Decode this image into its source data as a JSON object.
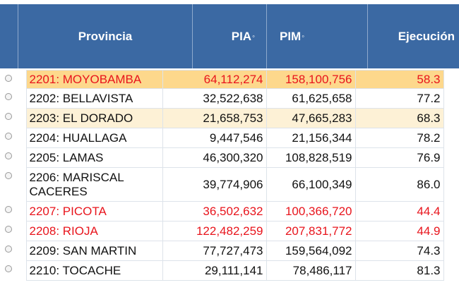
{
  "header": {
    "provincia": "Provincia",
    "pia": "PIA",
    "pim": "PIM",
    "ejecucion": "Ejecución",
    "sort_icon": "◦"
  },
  "colors": {
    "header_bg": "#3b69a3",
    "highlight": "#fdd88c",
    "alert_text": "#e8141c"
  },
  "rows": [
    {
      "provincia": "2201: MOYOBAMBA",
      "pia": "64,112,274",
      "pim": "158,100,756",
      "ejecucion": "58.3"
    },
    {
      "provincia": "2202: BELLAVISTA",
      "pia": "32,522,638",
      "pim": "61,625,658",
      "ejecucion": "77.2"
    },
    {
      "provincia": "2203: EL DORADO",
      "pia": "21,658,753",
      "pim": "47,665,283",
      "ejecucion": "68.3"
    },
    {
      "provincia": "2204: HUALLAGA",
      "pia": "9,447,546",
      "pim": "21,156,344",
      "ejecucion": "78.2"
    },
    {
      "provincia": "2205: LAMAS",
      "pia": "46,300,320",
      "pim": "108,828,519",
      "ejecucion": "76.9"
    },
    {
      "provincia": "2206: MARISCAL CACERES",
      "pia": "39,774,906",
      "pim": "66,100,349",
      "ejecucion": "86.0"
    },
    {
      "provincia": "2207: PICOTA",
      "pia": "36,502,632",
      "pim": "100,366,720",
      "ejecucion": "44.4"
    },
    {
      "provincia": "2208: RIOJA",
      "pia": "122,482,259",
      "pim": "207,831,772",
      "ejecucion": "44.9"
    },
    {
      "provincia": "2209: SAN MARTIN",
      "pia": "77,727,473",
      "pim": "159,564,092",
      "ejecucion": "74.3"
    },
    {
      "provincia": "2210: TOCACHE",
      "pia": "29,111,141",
      "pim": "78,486,117",
      "ejecucion": "81.3"
    }
  ]
}
